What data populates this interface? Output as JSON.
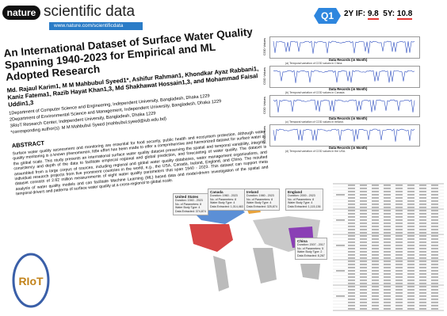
{
  "header": {
    "journal_badge": "nature",
    "journal_name": "scientific data",
    "url": "www.nature.com/scientificdata"
  },
  "metrics": {
    "quartile": "Q1",
    "if2y_label": "2Y IF:",
    "if2y": "9.8",
    "if5y_label": "5Y:",
    "if5y": "10.8"
  },
  "paper": {
    "title": "An International Dataset of Surface Water Quality Spanning 1940-2023 for Empirical and ML Adopted Research",
    "authors": "Md. Rajaul Karim1, M M Mahbubul Syeed1*, Ashifur Rahman1, Khondkar Ayaz Rabbani1, Kaniz Fatema1, Razib Hayat Khan1,3, Md Shakhawat Hossain1,3, and Mohammad Faisal Uddin1,3",
    "affiliations": [
      "1Department of Computer Science and Engineering, Independent University, Bangladesh, Dhaka 1229",
      "2Department of Environmental Science and Management, Independent University, Bangladesh, Dhaka 1229",
      "3RIoT Research Center, Independent University, Bangladesh, Dhaka 1229",
      "*corresponding author(s): M M Mahbubul Syeed (mahbubul.syeed@iub.edu.bd)"
    ],
    "abstract_heading": "ABSTRACT",
    "abstract": "Surface water quality assessment and monitoring are essential for food security, public health and ecosystem protection. Although water quality monitoring is a known phenomenon, little effort has been made to offer a comprehensive and harmonized dataset for surface water at the global scale. This study presents an international surface water quality dataset preserving the spatial and temporal variability, integrity, consistency and depth of the data to facilitate empirical regional and global prediction, and forecasting of water quality. The dataset is assembled from a large corpus of sources, including regional and global water quality databases, water management organizations, and individual research projects from five prominent countries in the world, e.g., the USA, Canada, Ireland, England, and China. The resulted dataset consists of 2.82 million measurements of eight water quality parameters that span 1940 - 2023. This dataset can support meta analysis of water quality models and can facilitate Machine Learning (ML) based data and model-driven investigation of the spatial and temporal drivers and patterns of surface water quality at a cross-regional to global scale."
  },
  "figures": {
    "y_label": "COD Values",
    "x_label": "Data Records (in Month)",
    "captions": [
      "(a) Temporal variation of COD values in China.",
      "(b) Temporal variation of COD values in Canada.",
      "(c) Temporal variation of COD values in Ireland.",
      "(d) Temporal variation of COD values in the USA."
    ]
  },
  "map": {
    "regions": [
      {
        "name": "United States",
        "lines": [
          "Duration: 1940 - 2023",
          "No. of Parameters: 8",
          "Water Body Type: 4",
          "Data Extracted: 374,874"
        ]
      },
      {
        "name": "Canada",
        "lines": [
          "Duration: 1960 - 2023",
          "No. of Parameters: 8",
          "Water Body Type: 4",
          "Data Extracted: 1,014,463"
        ]
      },
      {
        "name": "Ireland",
        "lines": [
          "Duration: 1980 - 2023",
          "No. of Parameters: 8",
          "Water Body Type: 4",
          "Data Extracted: 325,874"
        ]
      },
      {
        "name": "England",
        "lines": [
          "Duration: 2000 - 2023",
          "No. of Parameters: 8",
          "Water Body Type: 4",
          "Data Extracted: 1,115,136"
        ]
      },
      {
        "name": "China",
        "lines": [
          "Duration: 2007 - 2017",
          "No. of Parameters: 5",
          "Water Body Type: 2",
          "Data Extracted: 8,267"
        ]
      }
    ]
  }
}
